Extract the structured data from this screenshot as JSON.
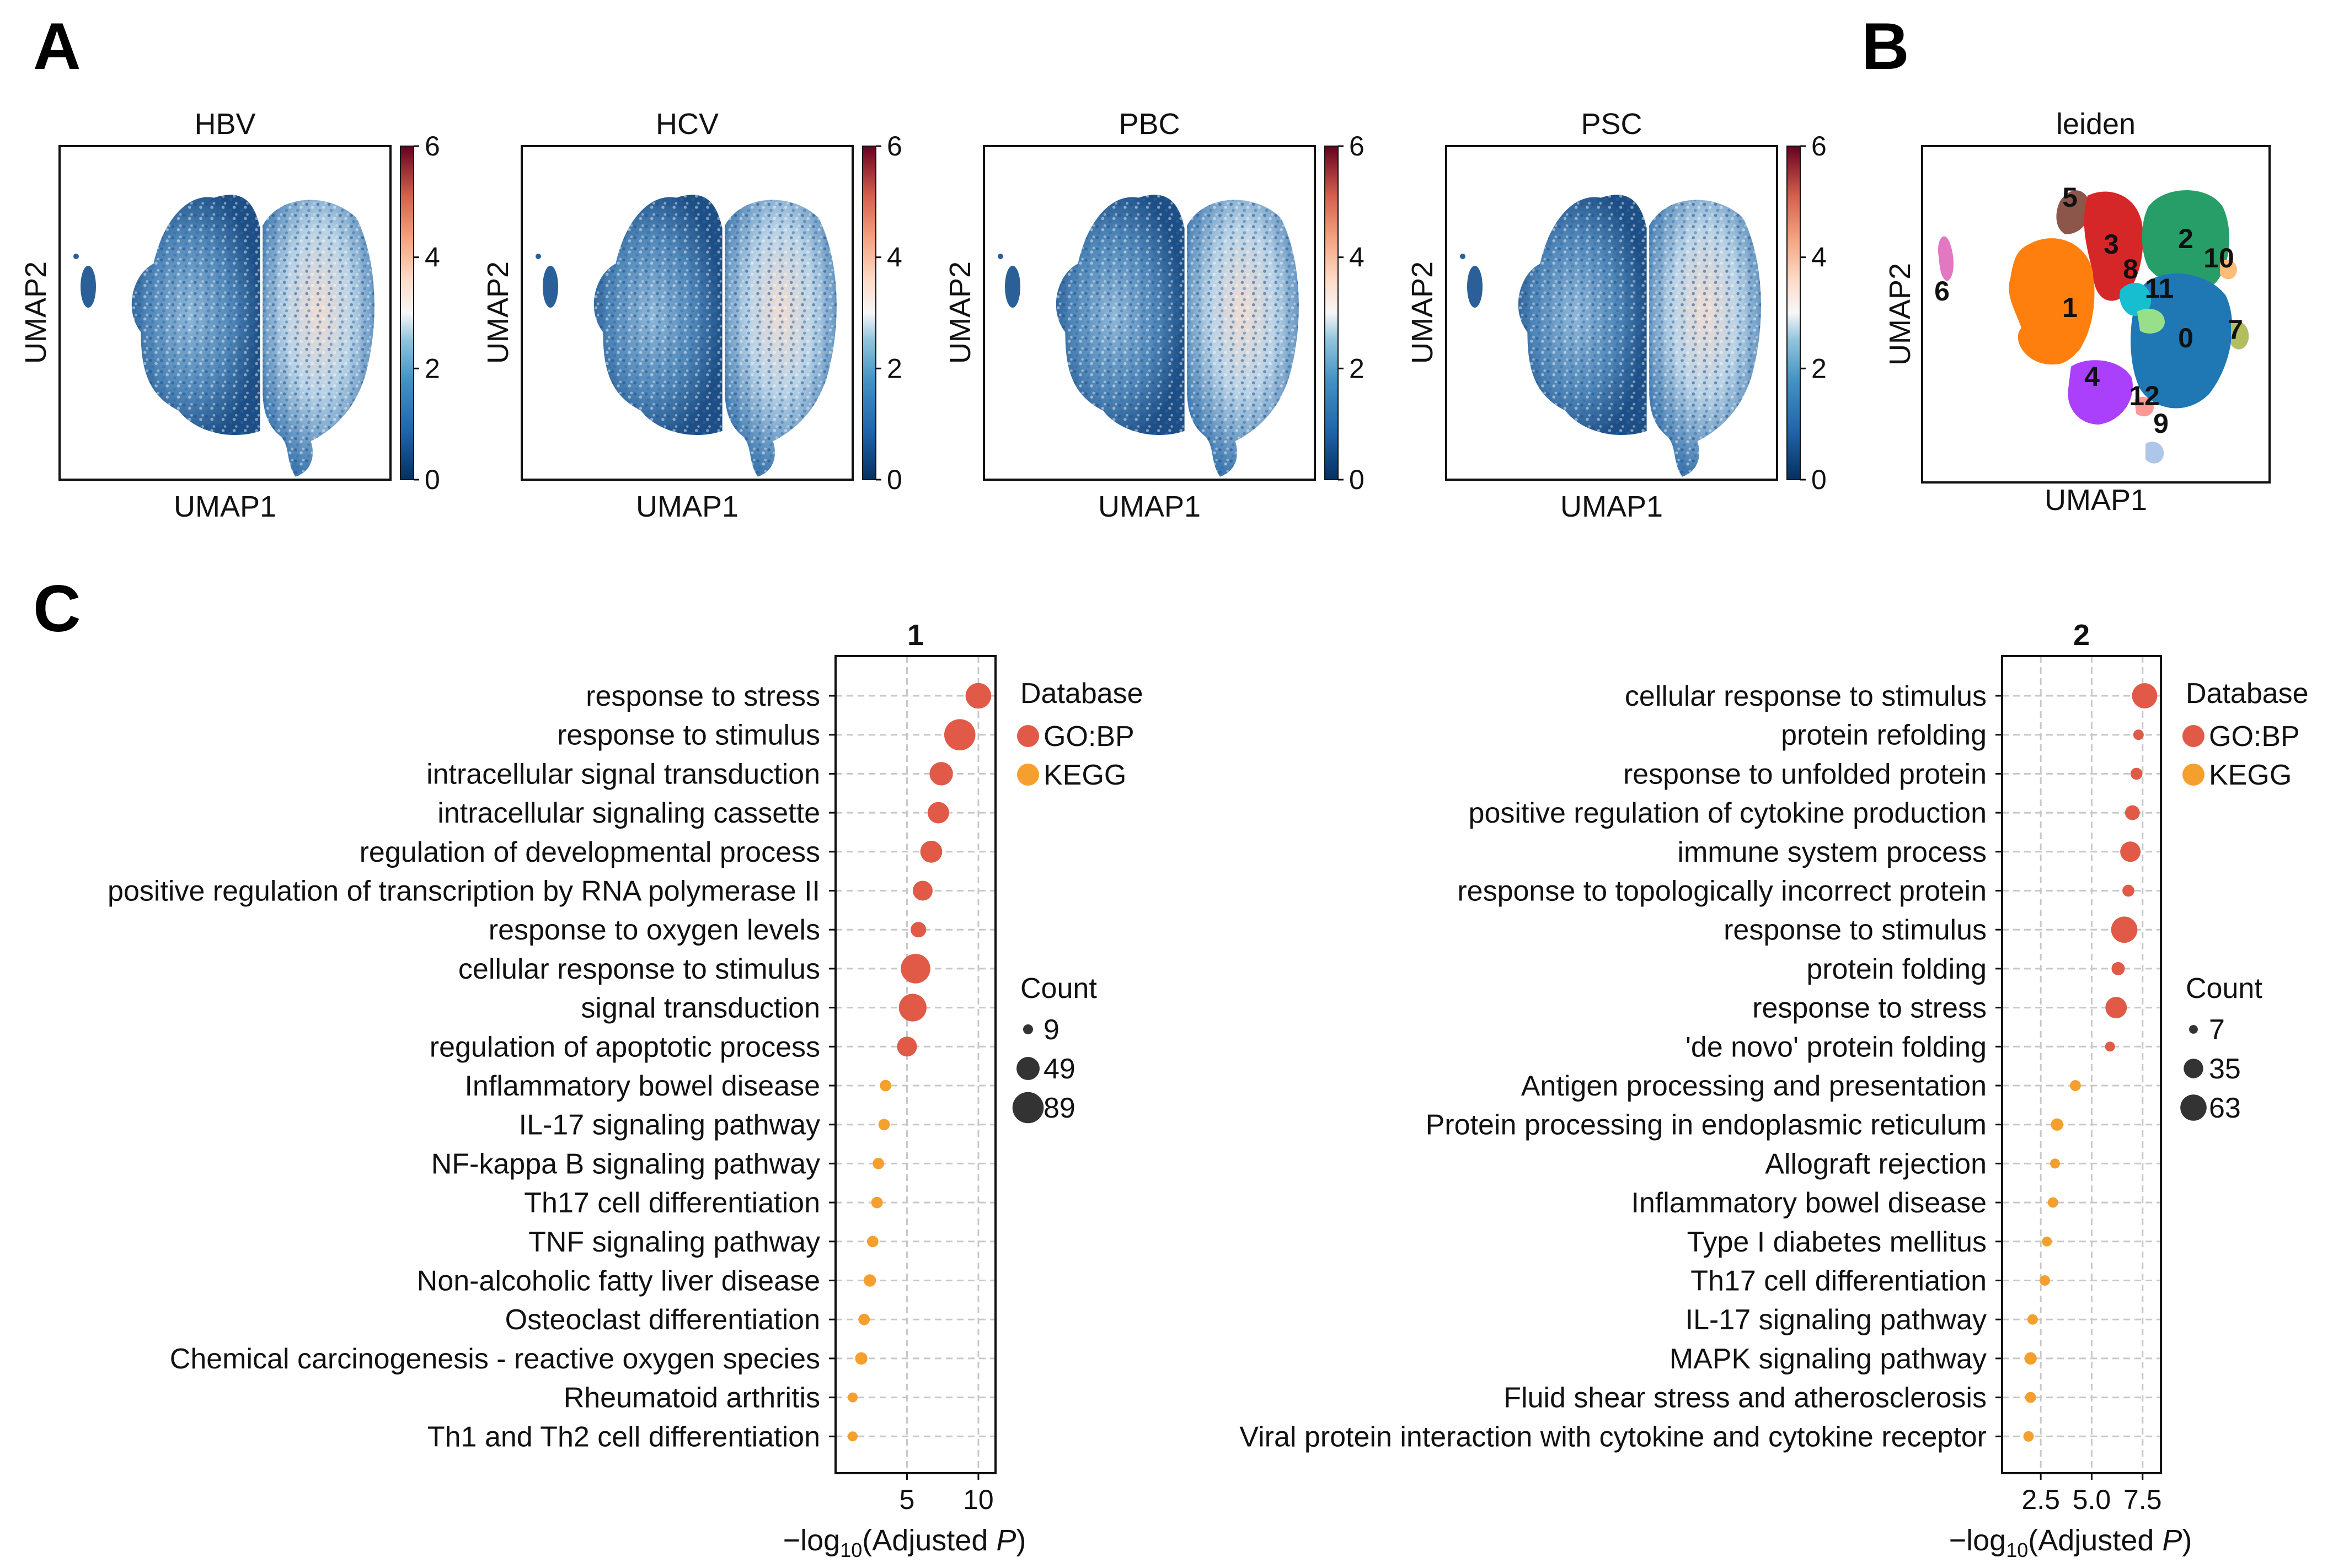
{
  "panel_letters": {
    "a": "A",
    "b": "B",
    "c": "C"
  },
  "umap": {
    "xlabel": "UMAP1",
    "ylabel": "UMAP2",
    "colorbar_ticks": [
      "0",
      "2",
      "4",
      "6"
    ],
    "colorbar_range": [
      0,
      6
    ],
    "panels": [
      {
        "title": "HBV"
      },
      {
        "title": "HCV"
      },
      {
        "title": "PBC"
      },
      {
        "title": "PSC"
      }
    ]
  },
  "leiden": {
    "title": "leiden",
    "xlabel": "UMAP1",
    "ylabel": "UMAP2",
    "clusters": [
      {
        "label": "0",
        "color": "#1f77b4"
      },
      {
        "label": "1",
        "color": "#ff7f0e"
      },
      {
        "label": "2",
        "color": "#279e68"
      },
      {
        "label": "3",
        "color": "#d62728"
      },
      {
        "label": "4",
        "color": "#aa40fc"
      },
      {
        "label": "5",
        "color": "#8c564b"
      },
      {
        "label": "6",
        "color": "#e377c2"
      },
      {
        "label": "7",
        "color": "#b5bd61"
      },
      {
        "label": "8",
        "color": "#17becf"
      },
      {
        "label": "9",
        "color": "#aec7e8"
      },
      {
        "label": "10",
        "color": "#ffbb78"
      },
      {
        "label": "11",
        "color": "#98df8a"
      },
      {
        "label": "12",
        "color": "#ff9896"
      }
    ]
  },
  "colors": {
    "gobp": "#e05a47",
    "kegg": "#f5a02e",
    "grid": "#c8c8c8"
  },
  "chart_data": [
    {
      "type": "scatter",
      "title": "1",
      "xlabel_prefix": "−log",
      "xlabel_sub": "10",
      "xlabel_main": "(Adjusted ",
      "xlabel_p": "P",
      "xlabel_end": ")",
      "xlim": [
        0,
        11.2
      ],
      "xticks": [
        5,
        10
      ],
      "xtick_labels": [
        "5",
        "10"
      ],
      "legend_database_title": "Database",
      "legend_database": [
        "GO:BP",
        "KEGG"
      ],
      "legend_count_title": "Count",
      "legend_counts": [
        9,
        49,
        89
      ],
      "legend_count_labels": [
        "9",
        "49",
        "89"
      ],
      "terms": [
        {
          "term": "response to stress",
          "db": "GO:BP",
          "x": 10.0,
          "count": 60
        },
        {
          "term": "response to stimulus",
          "db": "GO:BP",
          "x": 8.7,
          "count": 89
        },
        {
          "term": "intracellular signal transduction",
          "db": "GO:BP",
          "x": 7.4,
          "count": 50
        },
        {
          "term": "intracellular signaling cassette",
          "db": "GO:BP",
          "x": 7.2,
          "count": 42
        },
        {
          "term": "regulation of developmental process",
          "db": "GO:BP",
          "x": 6.7,
          "count": 44
        },
        {
          "term": "positive regulation of transcription by RNA polymerase II",
          "db": "GO:BP",
          "x": 6.1,
          "count": 36
        },
        {
          "term": "response to oxygen levels",
          "db": "GO:BP",
          "x": 5.8,
          "count": 22
        },
        {
          "term": "cellular response to stimulus",
          "db": "GO:BP",
          "x": 5.6,
          "count": 80
        },
        {
          "term": "signal transduction",
          "db": "GO:BP",
          "x": 5.4,
          "count": 70
        },
        {
          "term": "regulation of apoptotic process",
          "db": "GO:BP",
          "x": 5.0,
          "count": 36
        },
        {
          "term": "Inflammatory bowel disease",
          "db": "KEGG",
          "x": 3.5,
          "count": 12
        },
        {
          "term": "IL-17 signaling pathway",
          "db": "KEGG",
          "x": 3.4,
          "count": 12
        },
        {
          "term": "NF-kappa B signaling pathway",
          "db": "KEGG",
          "x": 3.0,
          "count": 12
        },
        {
          "term": "Th17 cell differentiation",
          "db": "KEGG",
          "x": 2.9,
          "count": 12
        },
        {
          "term": "TNF signaling pathway",
          "db": "KEGG",
          "x": 2.6,
          "count": 12
        },
        {
          "term": "Non-alcoholic fatty liver disease",
          "db": "KEGG",
          "x": 2.4,
          "count": 14
        },
        {
          "term": "Osteoclast differentiation",
          "db": "KEGG",
          "x": 2.0,
          "count": 12
        },
        {
          "term": "Chemical carcinogenesis - reactive oxygen species",
          "db": "KEGG",
          "x": 1.8,
          "count": 14
        },
        {
          "term": "Rheumatoid arthritis",
          "db": "KEGG",
          "x": 1.2,
          "count": 9
        },
        {
          "term": "Th1 and Th2 cell differentiation",
          "db": "KEGG",
          "x": 1.2,
          "count": 9
        }
      ]
    },
    {
      "type": "scatter",
      "title": "2",
      "xlabel_prefix": "−log",
      "xlabel_sub": "10",
      "xlabel_main": "(Adjusted ",
      "xlabel_p": "P",
      "xlabel_end": ")",
      "xlim": [
        0.6,
        8.4
      ],
      "xticks": [
        2.5,
        5.0,
        7.5
      ],
      "xtick_labels": [
        "2.5",
        "5.0",
        "7.5"
      ],
      "legend_database_title": "Database",
      "legend_database": [
        "GO:BP",
        "KEGG"
      ],
      "legend_count_title": "Count",
      "legend_counts": [
        7,
        35,
        63
      ],
      "legend_count_labels": [
        "7",
        "35",
        "63"
      ],
      "terms": [
        {
          "term": "cellular response to stimulus",
          "db": "GO:BP",
          "x": 7.6,
          "count": 58
        },
        {
          "term": "protein refolding",
          "db": "GO:BP",
          "x": 7.3,
          "count": 10
        },
        {
          "term": "response to unfolded protein",
          "db": "GO:BP",
          "x": 7.2,
          "count": 13
        },
        {
          "term": "positive regulation of cytokine production",
          "db": "GO:BP",
          "x": 7.0,
          "count": 20
        },
        {
          "term": "immune system process",
          "db": "GO:BP",
          "x": 6.9,
          "count": 38
        },
        {
          "term": "response to topologically incorrect protein",
          "db": "GO:BP",
          "x": 6.8,
          "count": 13
        },
        {
          "term": "response to stimulus",
          "db": "GO:BP",
          "x": 6.6,
          "count": 63
        },
        {
          "term": "protein folding",
          "db": "GO:BP",
          "x": 6.3,
          "count": 16
        },
        {
          "term": "response to stress",
          "db": "GO:BP",
          "x": 6.2,
          "count": 42
        },
        {
          "term": "'de novo' protein folding",
          "db": "GO:BP",
          "x": 5.9,
          "count": 9
        },
        {
          "term": "Antigen processing and presentation",
          "db": "KEGG",
          "x": 4.2,
          "count": 11
        },
        {
          "term": "Protein processing in endoplasmic reticulum",
          "db": "KEGG",
          "x": 3.3,
          "count": 14
        },
        {
          "term": "Allograft rejection",
          "db": "KEGG",
          "x": 3.2,
          "count": 9
        },
        {
          "term": "Inflammatory bowel disease",
          "db": "KEGG",
          "x": 3.1,
          "count": 10
        },
        {
          "term": "Type I diabetes mellitus",
          "db": "KEGG",
          "x": 2.8,
          "count": 9
        },
        {
          "term": "Th17 cell differentiation",
          "db": "KEGG",
          "x": 2.7,
          "count": 10
        },
        {
          "term": "IL-17 signaling pathway",
          "db": "KEGG",
          "x": 2.1,
          "count": 10
        },
        {
          "term": "MAPK signaling pathway",
          "db": "KEGG",
          "x": 2.0,
          "count": 14
        },
        {
          "term": "Fluid shear stress and atherosclerosis",
          "db": "KEGG",
          "x": 2.0,
          "count": 11
        },
        {
          "term": "Viral protein interaction with cytokine and cytokine receptor",
          "db": "KEGG",
          "x": 1.9,
          "count": 10
        }
      ]
    }
  ]
}
